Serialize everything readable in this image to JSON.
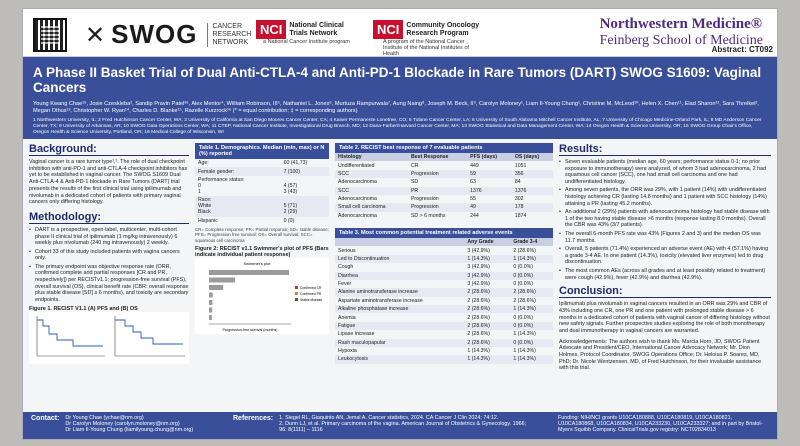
{
  "header": {
    "swog_name": "SWOG",
    "swog_sub": "CANCER RESEARCH NETWORK",
    "nci1_box": "NCI",
    "nci1_text": "National Clinical Trials Network",
    "nci1_cap": "a National Cancer Institute program",
    "nci2_box": "NCI",
    "nci2_text": "Community Oncology Research Program",
    "nci2_cap": "A program of the National Cancer Institute of the National Institutes of Health",
    "nw_title": "Northwestern Medicine®",
    "nw_sub": "Feinberg School of Medicine",
    "abstract": "Abstract: CT092"
  },
  "banner": {
    "title": "A Phase II Basket Trial of Dual Anti-CTLA-4 and Anti-PD-1 Blockade in Rare Tumors (DART) SWOG S1609: Vaginal Cancers",
    "authors": "Young Kwang Chae¹⁶, Josie Czeskleba², Sandip Pravin Patel³⁶, Alex Mentor⁴, William Robinson, III⁵, Nathaniel L. Jones⁶, Murtuza Rampurwala⁷, Aung Naing⁸, Joseph M. Beck, II⁹, Carolyn Moloney¹, Liam Il-Young Chung¹, Christine M. McLeod¹⁰, Helen X. Chen¹¹, Elad Sharon¹², Sara Threlkel², Megan Othus¹³, Christopher W. Ryan¹⁴, Charles D. Blanke¹⁵, Razelle Kurzrock¹⁶ (* = equal contribution; ‡ = corresponding authors)",
    "affiliations": "1 Northwestern University, IL; 2 Fred Hutchinson Cancer Center, WA; 3 University of California at San Diego Moores Cancer Center, CA; 4 Kaiser Permanente Lonetree, CO; 5 Tulane Cancer Center, LA; 6 University of South Alabama Mitchell Cancer Institute, AL; 7 University of Chicago Medicine-Orland Park, IL; 8 MD Anderson Cancer Center, TX; 9 University of Arkansas, AR; 10 SWOG Data Operations Center, WA; 11 CTEP, National Cancer Institute, Investigational Drug Branch, MD; 12 Dana-Farber/Harvard Cancer Center, MA; 13 SWOG Statistical and Data Management Center, WA; 14 Oregon Health & Science University, OR; 15 SWOG Group Chair's Office, Oregon Health & Science University, Portland, OR; 16 Medical College of Wisconsin, WI"
  },
  "background": {
    "heading": "Background:",
    "text": "Vaginal cancer is a rare tumor type¹,². The role of dual checkpoint inhibition with anti-PD-1 and anti-CTLA-4 checkpoint inhibitors has yet to be established in vaginal cancer. The SWOG S1609 Dual Anti-CTLA-4 & Anti-PD-1 blockade in Rare Tumors (DART) trial presents the results of the first clinical trial using ipilimumab and nivolumab in a dedicated cohort of patients with primary vaginal cancers only differing histology."
  },
  "methodology": {
    "heading": "Methodology:",
    "items": [
      "DART is a prospective, open-label, multicenter, multi-cohort phase II clinical trial of ipilimumab (1 mg/kg intravenously) 6 weekly plus nivolumab (240 mg intravenously) 2 weekly.",
      "Cohort 33 of this study included patients with vagina cancers only.",
      "The primary endpoint was objective response rate (ORR, confirmed complete and partial responses [CR and PR, respectively]) per RECISTv1.1; progression-free survival (PFS), overall survival (OS), clinical benefit rate (CBR: overall response plus stable disease [SD] ≥ 6 months), and toxicity are secondary endpoints."
    ],
    "figure1_title": "Figure 1. RECIST V1.1 (A) PFS and (B) OS"
  },
  "table1": {
    "title": "Table 1.  Demographics. Median (min, max) or N (%) reported",
    "rows": [
      [
        "Age:",
        "60 (41,73)"
      ],
      [
        "Female gender:",
        "7 (100)"
      ],
      [
        "Performance status:\n0\n1",
        "\n4 (57)\n3 (43)"
      ],
      [
        "Race:\nWhite\nBlack",
        "\n5 (71)\n2 (29)"
      ],
      [
        "Hispanic",
        "0 (0)"
      ]
    ],
    "note": "CR= Complete response; PR= Partial response; SD= stable disease; PFS= Progression free survival; OS= Overall survival; SCC= squamous cell carcinoma"
  },
  "figure2": {
    "title": "Figure 2: RECIST v1.1 Swimmer's plot of PFS (Bars indicate individual patient response)",
    "chart_title": "Swimmer's plot",
    "xlabel": "Progression-free survival (months)",
    "legend": [
      "Confirmed CR",
      "Confirmed PR",
      "Stable disease"
    ]
  },
  "table2": {
    "title": "Table 2. RECIST best response of 7 evaluable patients",
    "headers": [
      "Histology",
      "Best Response",
      "PFS (days)",
      "OS (days)"
    ],
    "rows": [
      [
        "Undifferentiated",
        "CR",
        "449",
        "1051"
      ],
      [
        "SCC",
        "Progression",
        "59",
        "356"
      ],
      [
        "Adenocarcinoma",
        "SD",
        "63",
        "84"
      ],
      [
        "SCC",
        "PR",
        "1376",
        "1376"
      ],
      [
        "Adenocarcinoma",
        "Progression",
        "55",
        "302"
      ],
      [
        "Small cell carcinoma",
        "Progression",
        "49",
        "178"
      ],
      [
        "Adenocarcinoma",
        "SD > 6 months",
        "244",
        "1874"
      ]
    ]
  },
  "table3": {
    "title": "Table 3. Most common potential treatment related adverse events",
    "headers": [
      "",
      "Any Grade",
      "Grade 3-4"
    ],
    "rows": [
      [
        "Serious",
        "3 (42.9%)",
        "2 (28.6%)"
      ],
      [
        "Led to Discontinuation",
        "1 (14.3%)",
        "1 (14.3%)"
      ],
      [
        "Cough",
        "3 (42.9%)",
        "0 (0.0%)"
      ],
      [
        "Diarrhea",
        "3 (42.9%)",
        "0 (0.0%)"
      ],
      [
        "Fever",
        "3 (42.9%)",
        "0 (0.0%)"
      ],
      [
        "Alanine aminotransferase increase",
        "2 (28.6%)",
        "2 (28.6%)"
      ],
      [
        "Aspartate aminotransferase increase",
        "2 (28.6%)",
        "2 (28.6%)"
      ],
      [
        "Alkaline phosphatase increase",
        "2 (28.6%)",
        "1 (14.3%)"
      ],
      [
        "Anemia",
        "2 (28.6%)",
        "0 (0.0%)"
      ],
      [
        "Fatigue",
        "2 (28.6%)",
        "0 (0.0%)"
      ],
      [
        "Lipase increase",
        "2 (28.6%)",
        "1 (14.3%)"
      ],
      [
        "Rash maculopapular",
        "2 (28.6%)",
        "0 (0.0%)"
      ],
      [
        "Hypoxia",
        "1 (14.3%)",
        "1 (14.3%)"
      ],
      [
        "Leukocytosis",
        "1 (14.3%)",
        "1 (14.3%)"
      ]
    ]
  },
  "results": {
    "heading": "Results:",
    "items": [
      "Seven evaluable patients (median age, 60 years; performance status 0-1; no prior exposure to immunotherapy) were analyzed, of whom 3 had adenocarcinoma, 2 had squamous cell cancer (SCC), one had small cell carcinoma and one had undifferentiated histology.",
      "Among seven patients, the ORR was 29%, with 1 patient (14%) with undifferentiated histology achieving CR (lasting 14.8 months) and 1 patient with SCC histology (14%) attaining a PR (lasting 45.2 months).",
      "An additional 2 (29%) patients with adenocarcinoma histology had stable disease with 1 of the two having stable disease >6 months (response lasting 8.0 months). Overall the CBR was 43% (3/7 patients).",
      "The overall 6-month PFS rate was 43% (Figures 2 and 3) and the median OS was 11.7 months.",
      "Overall, 5 patients (71.4%) experienced an adverse event (AE) with 4 (57.1%) having a grade 3-4 AE. In one patient (14.3%), toxicity (elevated liver enzymes) led to drug discontinuation.",
      "The most common AEs (across all grades and at least possibly related to treatment) were cough (42.9%), fever (42.9%) and diarrhea (42.9%)."
    ]
  },
  "conclusion": {
    "heading": "Conclusion:",
    "text": "Ipilimumab plus nivolumab in vaginal cancers resulted in an ORR was 29% and CBR of 43% including one CR, one PR and one patient with prolonged stable disease > 6 months in a dedicated cohort of patients with vaginal cancer of differing histology without new safety signals. Further prospective studies exploring the role of both monotherapy and dual immunotherapy in vaginal cancers are warranted.",
    "ack": "Acknowledgements: The authors wish to thank Ms. Marcia Horn, JD, SWOG Patient Advocate and President/CEO, International Cancer Advocacy Network; Mr. Dion Holmes, Protocol Coordinator, SWOG Operations Office; Dr. Heloisa P. Soares, MD, PhD; Dr. Nicole Wentzensen, MD, of Fred Hutchinson, for their invaluable assistance with this trial."
  },
  "footer": {
    "contact_label": "Contact:",
    "contacts": [
      "Dr Young Chae (ychae@nm.org)",
      "Dr Carolyn Moloney (carolyn.moloney@nm.org)",
      "Dr Liam Il-Young Chung (liamilyoung.chung@nm.org)"
    ],
    "ref_label": "References:",
    "refs": [
      "1. Siegel RL, Giaquinto AN, Jemal A. Cancer statistics, 2024. CA Cancer J Clin 2024; 74:12.",
      "2. Dunn LJ, et al. Primary carcinoma of the vagina. American Journal of Obstetrics & Gynecology. 1966; 96: 8(1111) – 1116"
    ],
    "funding": "Funding: NIH/NCI grants U10CA180888, U10CA180819, U10CA180821, U10CA180868, U10CA180834, U10CA233230, U10CA233327; and in part by Bristol-Myers Squibb Company. ClinicalTrials.gov registry: NCT02834013"
  }
}
